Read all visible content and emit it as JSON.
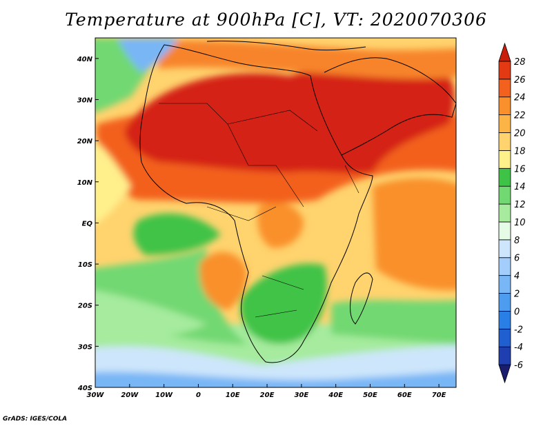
{
  "title": "Temperature at 900hPa [C], VT: 2020070306",
  "credit": "GrADS: IGES/COLA",
  "chart_data": {
    "type": "heatmap",
    "title": "Temperature at 900hPa [C], VT: 2020070306",
    "variable_unit": "C",
    "x_ticks": [
      "30W",
      "20W",
      "10W",
      "0",
      "10E",
      "20E",
      "30E",
      "40E",
      "50E",
      "60E",
      "70E"
    ],
    "y_ticks": [
      "40S",
      "30S",
      "20S",
      "10S",
      "EQ",
      "10N",
      "20N",
      "30N",
      "40N"
    ],
    "lon_range": [
      -30,
      75
    ],
    "lat_range": [
      -40,
      45
    ],
    "colorbar": {
      "levels": [
        "-6",
        "-4",
        "-2",
        "0",
        "2",
        "4",
        "6",
        "8",
        "10",
        "12",
        "14",
        "16",
        "18",
        "20",
        "22",
        "24",
        "26",
        "28"
      ],
      "colors": [
        "#1a1d6e",
        "#1f3fb0",
        "#1f5fd0",
        "#2a7fe6",
        "#4e9cf0",
        "#78b6f6",
        "#a3cdfa",
        "#cde6fb",
        "#e6fbe6",
        "#a6eb9e",
        "#72d872",
        "#3fc346",
        "#fff08c",
        "#ffd36e",
        "#fdb447",
        "#f9902c",
        "#f3611e",
        "#e43a14",
        "#c81e0a"
      ]
    },
    "grid": false,
    "legend": "right"
  },
  "colors": {
    "hot_max": "#d42212",
    "hot": "#ee4a18",
    "warm": "#f7842a",
    "mild": "#fdb447",
    "light_warm": "#ffd36e",
    "yellow": "#fff08c",
    "green": "#3fc346",
    "light_green": "#72d872",
    "mint": "#a6eb9e",
    "pale": "#e6fbe6",
    "blue_light": "#a3cdfa",
    "blue": "#78b6f6"
  }
}
